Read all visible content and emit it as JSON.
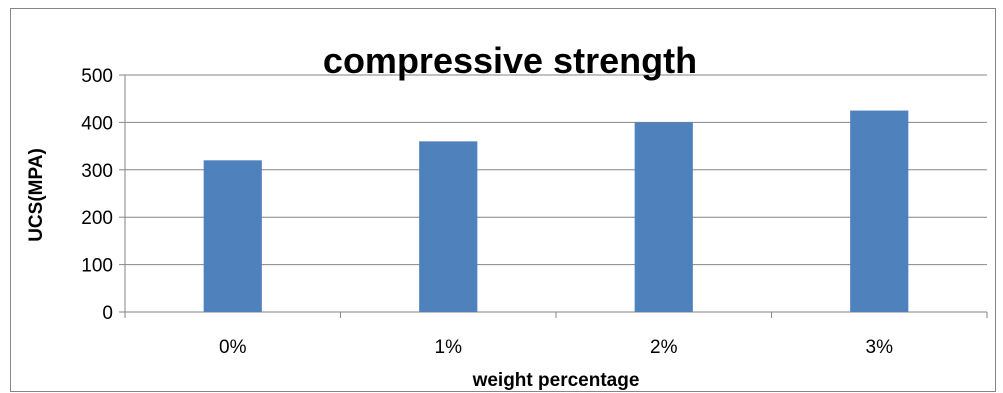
{
  "chart_data": {
    "type": "bar",
    "title": "compressive strength",
    "xlabel": "weight percentage",
    "ylabel": "UCS(MPA)",
    "categories": [
      "0%",
      "1%",
      "2%",
      "3%"
    ],
    "values": [
      320,
      360,
      400,
      425
    ],
    "ylim": [
      0,
      500
    ],
    "yticks": [
      0,
      100,
      200,
      300,
      400,
      500
    ],
    "grid": true,
    "legend": "none",
    "bar_color": "#4F81BD"
  }
}
